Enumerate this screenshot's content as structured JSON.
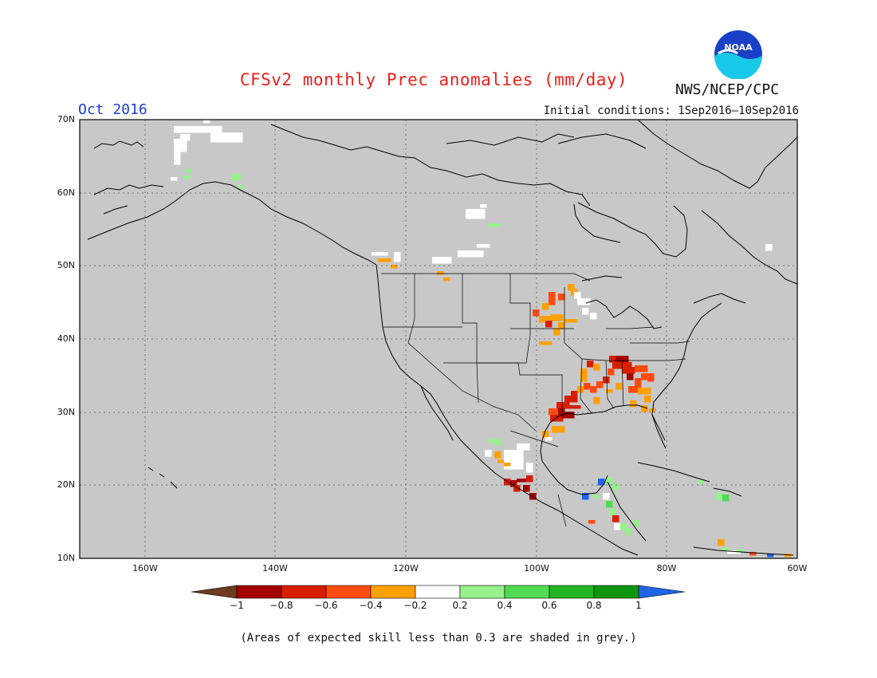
{
  "title": "CFSv2 monthly Prec anomalies (mm/day)",
  "month_label": "Oct 2016",
  "agency": "NWS/NCEP/CPC",
  "logo_text": "NOAA",
  "initial_conditions": "Initial conditions: 1Sep2016–10Sep2016",
  "note": "(Areas of expected skill less than 0.3 are shaded in grey.)",
  "map": {
    "lat_labels": [
      "70N",
      "60N",
      "50N",
      "40N",
      "30N",
      "20N",
      "10N"
    ],
    "lon_labels": [
      "160W",
      "140W",
      "120W",
      "100W",
      "80W",
      "60W"
    ],
    "background_color": "#c8c8c8"
  },
  "colorbar": {
    "labels": [
      "−1",
      "−0.8",
      "−0.6",
      "−0.4",
      "−0.2",
      "0.2",
      "0.4",
      "0.6",
      "0.8",
      "1"
    ],
    "colors": [
      "#6e3b1f",
      "#a50000",
      "#d81e00",
      "#ff4a10",
      "#ffa000",
      "#ffffff",
      "#96f08c",
      "#50dc50",
      "#22b422",
      "#0f960f",
      "#1e64e6"
    ]
  }
}
